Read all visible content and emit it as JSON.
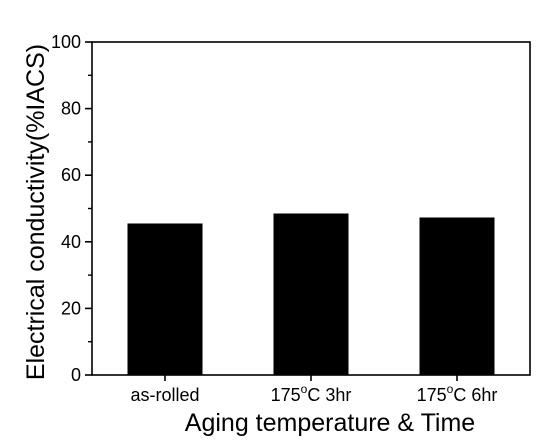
{
  "chart_data": {
    "type": "bar",
    "title": "",
    "xlabel": "Aging temperature & Time",
    "ylabel": "Electrical conductivity(%IACS)",
    "categories": [
      {
        "base": "as-rolled",
        "sup": "",
        "rest": ""
      },
      {
        "base": "175",
        "sup": "o",
        "rest": "C 3hr"
      },
      {
        "base": "175",
        "sup": "o",
        "rest": "C 6hr"
      }
    ],
    "values": [
      45.5,
      48.5,
      47.3
    ],
    "ylim": [
      0,
      100
    ],
    "yticks": [
      0,
      20,
      40,
      60,
      80,
      100
    ],
    "grid": false,
    "bar_color": "#000000",
    "axis_color": "#000000"
  }
}
